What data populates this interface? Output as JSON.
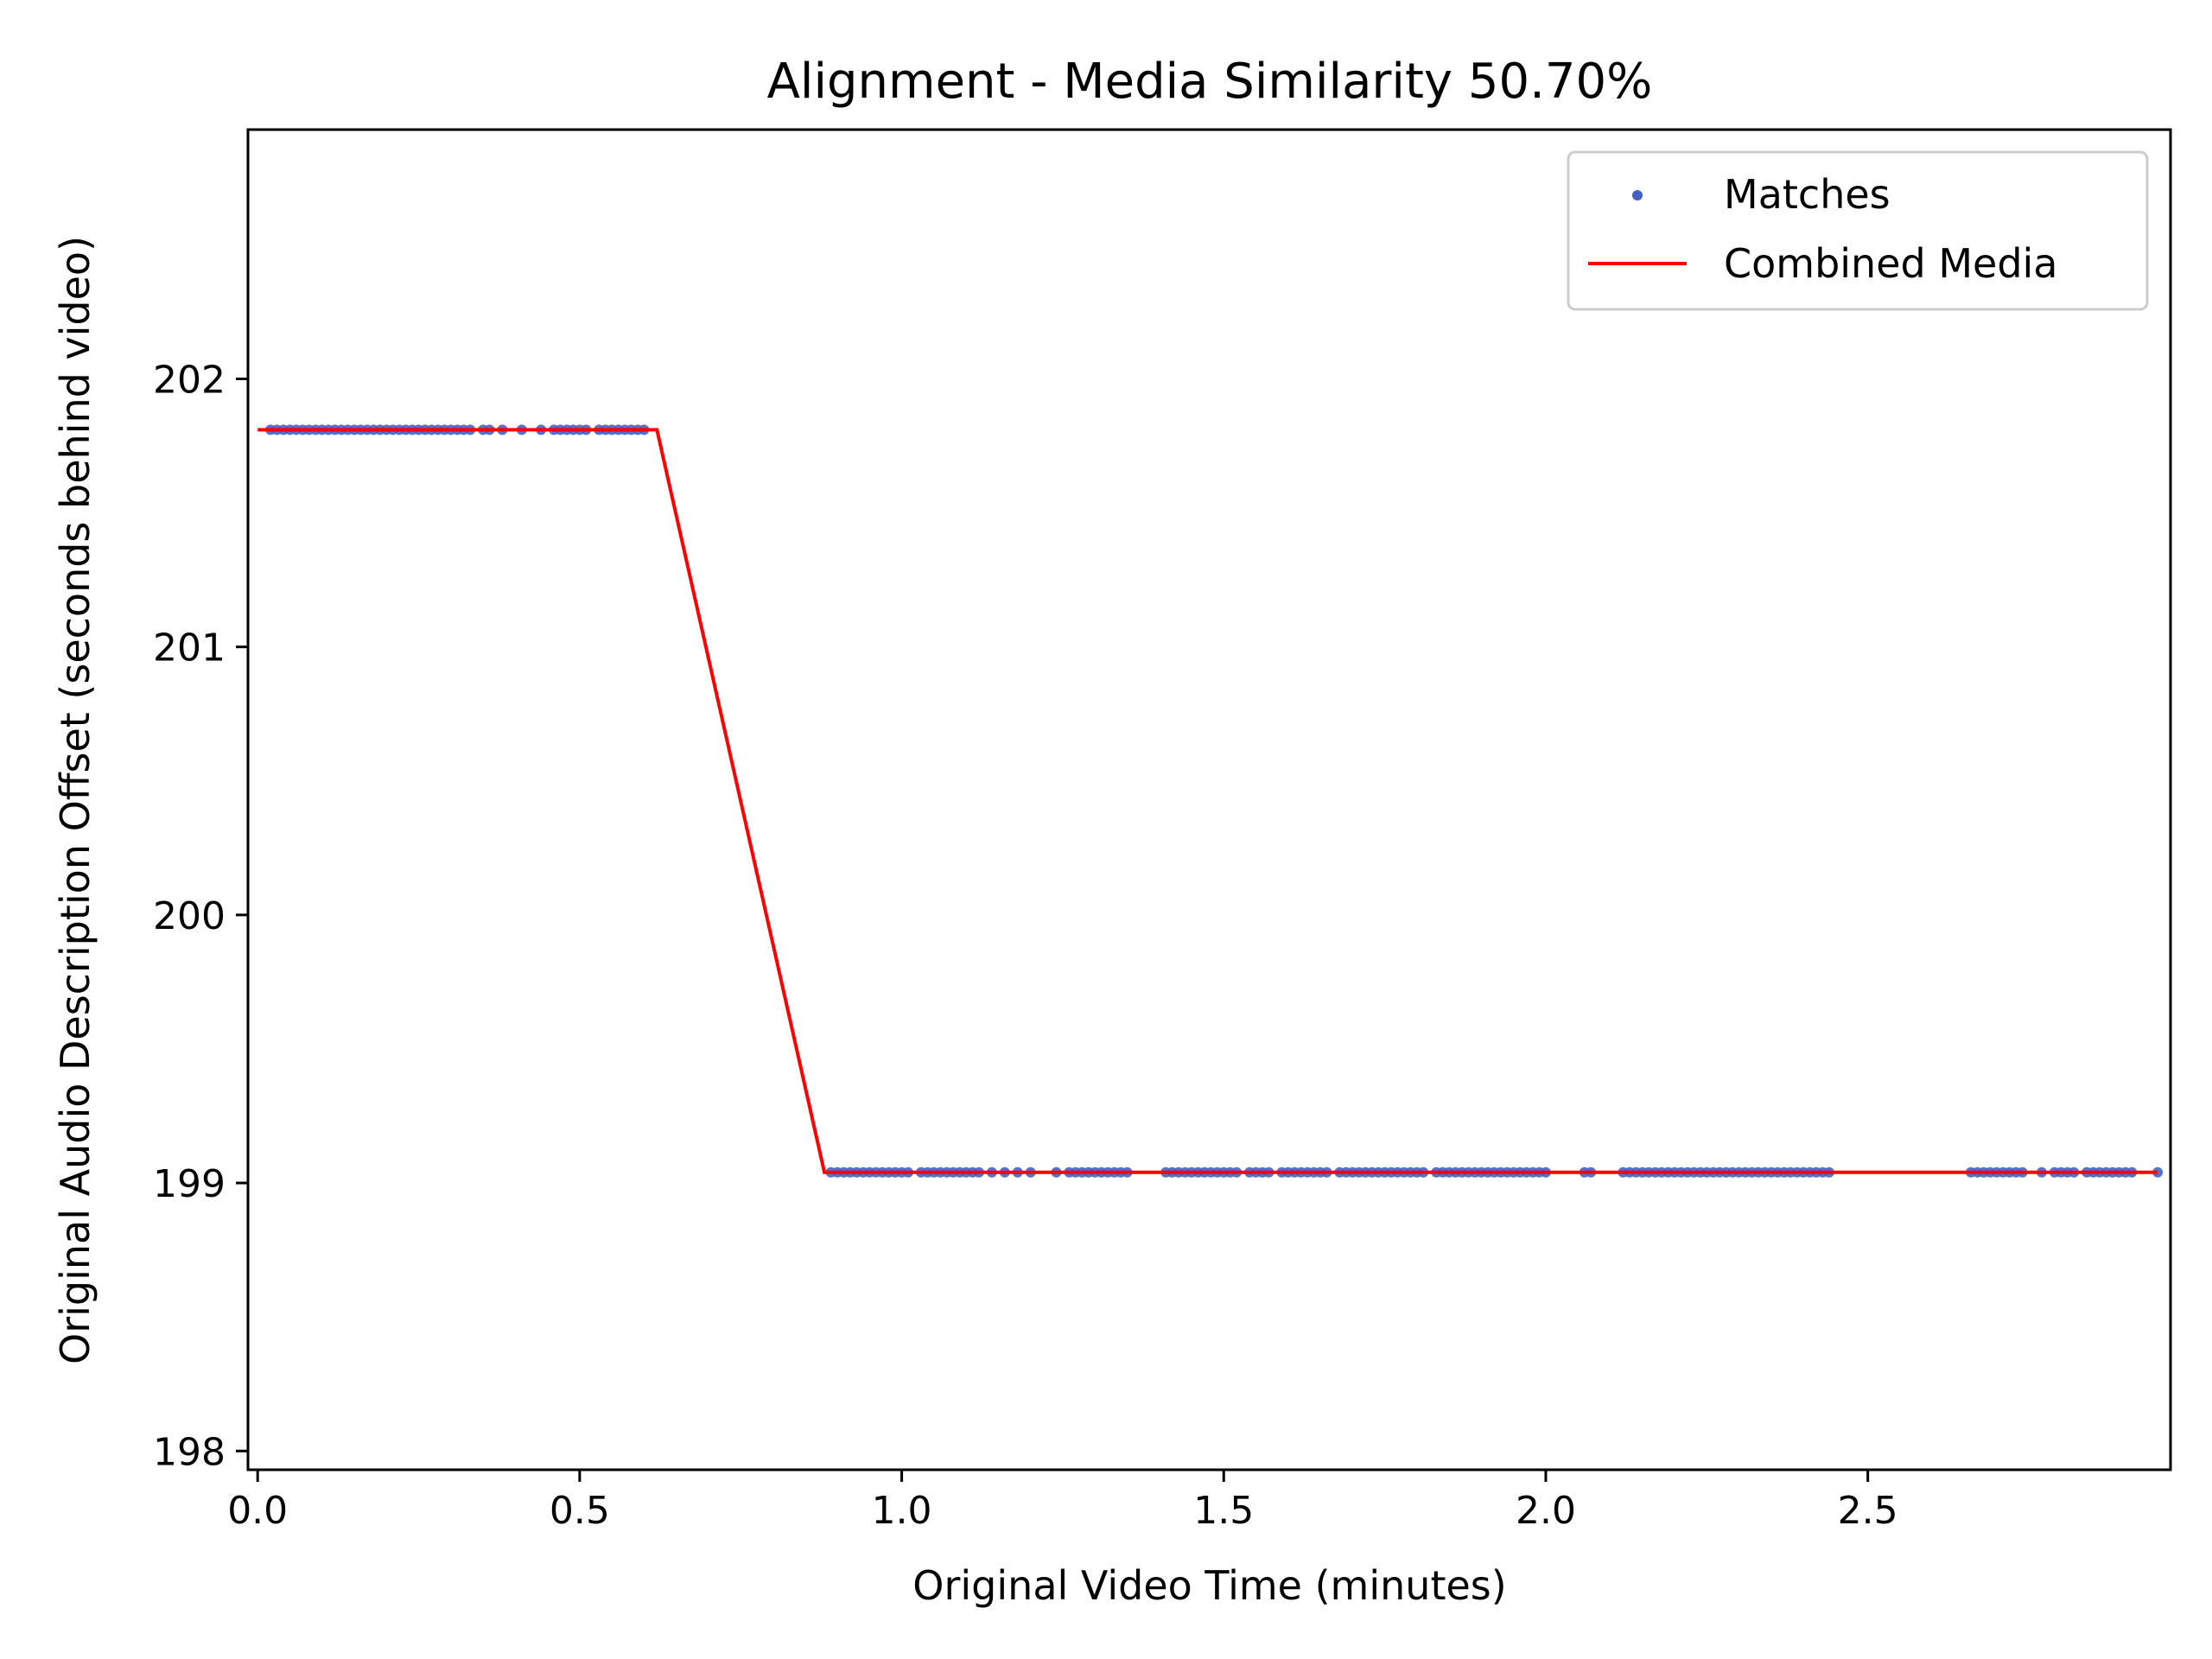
{
  "chart_data": {
    "type": "scatter",
    "title": "Alignment - Media Similarity 50.70%",
    "xlabel": "Original Video Time (minutes)",
    "ylabel": "Original Audio Description Offset (seconds behind video)",
    "xlim": [
      -0.015,
      2.97
    ],
    "ylim": [
      197.93,
      202.93
    ],
    "x_ticks": [
      0.0,
      0.5,
      1.0,
      1.5,
      2.0,
      2.5
    ],
    "x_tick_labels": [
      "0.0",
      "0.5",
      "1.0",
      "1.5",
      "2.0",
      "2.5"
    ],
    "y_ticks": [
      198,
      199,
      200,
      201,
      202
    ],
    "y_tick_labels": [
      "198",
      "199",
      "200",
      "201",
      "202"
    ],
    "grid": false,
    "legend": {
      "placement": "top-right",
      "entries": [
        "Matches",
        "Combined Media"
      ]
    },
    "series": [
      {
        "name": "Matches",
        "kind": "scatter",
        "color": "#4063c4",
        "x": [
          0.02,
          0.03,
          0.04,
          0.05,
          0.06,
          0.07,
          0.08,
          0.09,
          0.1,
          0.11,
          0.12,
          0.13,
          0.14,
          0.15,
          0.16,
          0.17,
          0.18,
          0.19,
          0.2,
          0.21,
          0.22,
          0.23,
          0.24,
          0.25,
          0.26,
          0.27,
          0.28,
          0.29,
          0.3,
          0.31,
          0.32,
          0.33,
          0.35,
          0.36,
          0.38,
          0.41,
          0.44,
          0.46,
          0.47,
          0.48,
          0.49,
          0.5,
          0.51,
          0.53,
          0.54,
          0.55,
          0.56,
          0.57,
          0.58,
          0.59,
          0.6,
          0.89,
          0.9,
          0.91,
          0.92,
          0.93,
          0.94,
          0.95,
          0.96,
          0.97,
          0.98,
          0.99,
          1.0,
          1.01,
          1.03,
          1.04,
          1.05,
          1.06,
          1.07,
          1.08,
          1.09,
          1.1,
          1.11,
          1.12,
          1.14,
          1.16,
          1.18,
          1.2,
          1.24,
          1.26,
          1.27,
          1.28,
          1.29,
          1.3,
          1.31,
          1.32,
          1.33,
          1.34,
          1.35,
          1.41,
          1.42,
          1.43,
          1.44,
          1.45,
          1.46,
          1.47,
          1.48,
          1.49,
          1.5,
          1.51,
          1.52,
          1.54,
          1.55,
          1.56,
          1.57,
          1.59,
          1.6,
          1.61,
          1.62,
          1.63,
          1.64,
          1.65,
          1.66,
          1.68,
          1.69,
          1.7,
          1.71,
          1.72,
          1.73,
          1.74,
          1.75,
          1.76,
          1.77,
          1.78,
          1.79,
          1.8,
          1.81,
          1.83,
          1.84,
          1.85,
          1.86,
          1.87,
          1.88,
          1.89,
          1.9,
          1.91,
          1.92,
          1.93,
          1.94,
          1.95,
          1.96,
          1.97,
          1.98,
          1.99,
          2.0,
          2.06,
          2.07,
          2.12,
          2.13,
          2.14,
          2.15,
          2.16,
          2.17,
          2.18,
          2.19,
          2.2,
          2.21,
          2.22,
          2.23,
          2.24,
          2.25,
          2.26,
          2.27,
          2.28,
          2.29,
          2.3,
          2.31,
          2.32,
          2.33,
          2.34,
          2.35,
          2.36,
          2.37,
          2.38,
          2.39,
          2.4,
          2.41,
          2.42,
          2.43,
          2.44,
          2.66,
          2.67,
          2.68,
          2.69,
          2.7,
          2.71,
          2.72,
          2.73,
          2.74,
          2.77,
          2.79,
          2.8,
          2.81,
          2.82,
          2.84,
          2.85,
          2.86,
          2.87,
          2.88,
          2.89,
          2.9,
          2.91,
          2.95
        ],
        "y_first": 201.81,
        "y_second": 199.04,
        "x_split": 0.75
      },
      {
        "name": "Combined Media",
        "kind": "line",
        "color": "#ff0000",
        "x": [
          0.0,
          0.62,
          0.88,
          2.95
        ],
        "y": [
          201.81,
          201.81,
          199.04,
          199.04
        ]
      }
    ]
  }
}
